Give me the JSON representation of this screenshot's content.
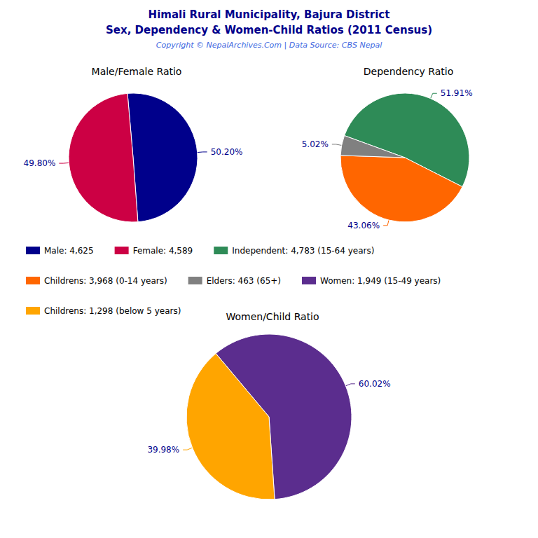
{
  "title": "Himali Rural Municipality, Bajura District",
  "subtitle": "Sex, Dependency & Women-Child Ratios (2011 Census)",
  "annotations": [
    "Copyright © NepalArchives.Com | Data Source: CBS Nepal"
  ],
  "chart_data": [
    {
      "type": "pie",
      "title": "Male/Female Ratio",
      "categories": [
        "Male: 4,625",
        "Female: 4,589"
      ],
      "values": [
        50.2,
        49.8
      ],
      "value_labels": [
        "50.20%",
        "49.80%"
      ],
      "colors": [
        "#00008B",
        "#CC0044"
      ],
      "data_labels": true,
      "legend": "center"
    },
    {
      "type": "pie",
      "title": "Dependency Ratio",
      "categories": [
        "Independent: 4,783 (15-64 years)",
        "Childrens: 3,968 (0-14 years)",
        "Elders: 463 (65+)"
      ],
      "values": [
        51.91,
        43.06,
        5.02
      ],
      "value_labels": [
        "51.91%",
        "43.06%",
        "5.02%"
      ],
      "colors": [
        "#2E8B57",
        "#FF6600",
        "#808080"
      ],
      "data_labels": true,
      "legend": "center"
    },
    {
      "type": "pie",
      "title": "Women/Child Ratio",
      "categories": [
        "Women: 1,949 (15-49 years)",
        "Childrens: 1,298 (below 5 years)"
      ],
      "values": [
        60.02,
        39.98
      ],
      "value_labels": [
        "60.02%",
        "39.98%"
      ],
      "colors": [
        "#5B2D8E",
        "#FFA500"
      ],
      "data_labels": true,
      "legend": "center"
    }
  ]
}
